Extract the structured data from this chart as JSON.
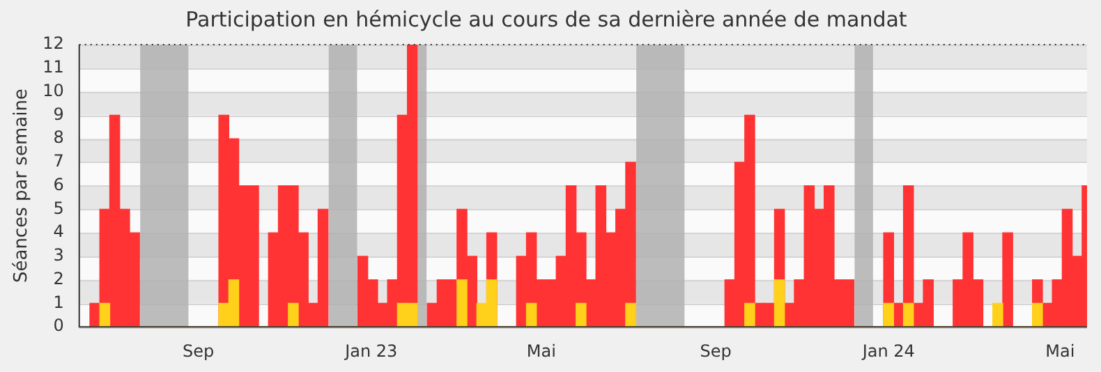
{
  "chart_data": {
    "type": "bar",
    "title": "Participation en hémicycle au cours de sa dernière année de mandat",
    "ylabel": "Séances par semaine",
    "x": [
      "2022-06-20",
      "2022-06-27",
      "2022-07-04",
      "2022-07-11",
      "2022-07-18",
      "2022-07-25",
      "2022-08-01",
      "2022-08-08",
      "2022-08-15",
      "2022-08-22",
      "2022-08-29",
      "2022-09-05",
      "2022-09-12",
      "2022-09-19",
      "2022-09-26",
      "2022-10-03",
      "2022-10-10",
      "2022-10-17",
      "2022-10-24",
      "2022-10-31",
      "2022-11-07",
      "2022-11-14",
      "2022-11-21",
      "2022-11-28",
      "2022-12-05",
      "2022-12-12",
      "2022-12-19",
      "2022-12-26",
      "2023-01-02",
      "2023-01-09",
      "2023-01-16",
      "2023-01-23",
      "2023-01-30",
      "2023-02-06",
      "2023-02-13",
      "2023-02-20",
      "2023-02-27",
      "2023-03-06",
      "2023-03-13",
      "2023-03-20",
      "2023-03-27",
      "2023-04-03",
      "2023-04-10",
      "2023-04-17",
      "2023-04-24",
      "2023-05-01",
      "2023-05-08",
      "2023-05-15",
      "2023-05-22",
      "2023-05-29",
      "2023-06-05",
      "2023-06-12",
      "2023-06-19",
      "2023-06-26",
      "2023-07-03",
      "2023-07-10",
      "2023-07-17",
      "2023-07-24",
      "2023-07-31",
      "2023-08-07",
      "2023-08-14",
      "2023-08-21",
      "2023-08-28",
      "2023-09-04",
      "2023-09-11",
      "2023-09-18",
      "2023-09-25",
      "2023-10-02",
      "2023-10-09",
      "2023-10-16",
      "2023-10-23",
      "2023-10-30",
      "2023-11-06",
      "2023-11-13",
      "2023-11-20",
      "2023-11-27",
      "2023-12-04",
      "2023-12-11",
      "2023-12-18",
      "2023-12-25",
      "2024-01-01",
      "2024-01-08",
      "2024-01-15",
      "2024-01-22",
      "2024-01-29",
      "2024-02-05",
      "2024-02-12",
      "2024-02-19",
      "2024-02-26",
      "2024-03-04",
      "2024-03-11",
      "2024-03-18",
      "2024-03-25",
      "2024-04-01",
      "2024-04-08",
      "2024-04-15",
      "2024-04-22",
      "2024-04-29",
      "2024-05-06",
      "2024-05-13",
      "2024-05-20"
    ],
    "series": [
      {
        "color": "#ff3333",
        "values": [
          1,
          5,
          9,
          5,
          4,
          0,
          0,
          0,
          0,
          0,
          0,
          0,
          0,
          9,
          8,
          6,
          6,
          0,
          4,
          6,
          6,
          4,
          1,
          5,
          0,
          0,
          0,
          3,
          2,
          1,
          2,
          9,
          12,
          0,
          1,
          2,
          2,
          5,
          3,
          null,
          4,
          0,
          0,
          3,
          4,
          2,
          2,
          3,
          6,
          4,
          2,
          6,
          4,
          5,
          7,
          0,
          0,
          0,
          0,
          0,
          0,
          0,
          0,
          0,
          2,
          7,
          9,
          1,
          1,
          5,
          1,
          2,
          6,
          5,
          6,
          2,
          2,
          0,
          0,
          0,
          4,
          1,
          6,
          1,
          2,
          0,
          0,
          2,
          4,
          2,
          0,
          null,
          4,
          0,
          0,
          2,
          1,
          2,
          5,
          3,
          6
        ]
      },
      {
        "color": "#ffd11a",
        "values": [
          0,
          1,
          0,
          0,
          0,
          0,
          0,
          0,
          0,
          0,
          0,
          0,
          0,
          1,
          2,
          0,
          0,
          0,
          0,
          0,
          1,
          0,
          0,
          0,
          0,
          0,
          0,
          0,
          0,
          0,
          0,
          1,
          1,
          0,
          0,
          0,
          0,
          2,
          0,
          1,
          2,
          0,
          0,
          0,
          1,
          0,
          0,
          0,
          0,
          1,
          0,
          0,
          0,
          0,
          1,
          0,
          0,
          0,
          0,
          0,
          0,
          0,
          0,
          0,
          0,
          0,
          1,
          0,
          0,
          2,
          0,
          0,
          0,
          0,
          0,
          0,
          0,
          0,
          0,
          0,
          1,
          0,
          1,
          0,
          0,
          0,
          0,
          0,
          0,
          0,
          0,
          1,
          0,
          0,
          0,
          1,
          0,
          0,
          0,
          0,
          0
        ]
      }
    ],
    "bands": [
      {
        "axis": "x",
        "from": "2022-07-22",
        "to": "2022-08-25",
        "color": "#b0b0b0"
      },
      {
        "axis": "x",
        "from": "2022-12-02",
        "to": "2022-12-22",
        "color": "#b0b0b0"
      },
      {
        "axis": "x",
        "from": "2023-02-03",
        "to": "2023-02-09",
        "color": "#b0b0b0"
      },
      {
        "axis": "x",
        "from": "2023-07-07",
        "to": "2023-08-10",
        "color": "#b0b0b0"
      },
      {
        "axis": "x",
        "from": "2023-12-08",
        "to": "2023-12-21",
        "color": "#b0b0b0"
      }
    ],
    "xlim": [
      "2022-06-09",
      "2024-05-20"
    ],
    "xticks": [
      {
        "value": "2022-09-01",
        "label": "Sep"
      },
      {
        "value": "2023-01-01",
        "label": "Jan 23"
      },
      {
        "value": "2023-05-01",
        "label": "Mai"
      },
      {
        "value": "2023-09-01",
        "label": "Sep"
      },
      {
        "value": "2024-01-01",
        "label": "Jan 24"
      },
      {
        "value": "2024-05-01",
        "label": "Mai"
      }
    ],
    "ylim": [
      0,
      12
    ],
    "yticks": [
      0,
      1,
      2,
      3,
      4,
      5,
      6,
      7,
      8,
      9,
      10,
      11,
      12
    ],
    "grid": "y",
    "legend": false
  }
}
